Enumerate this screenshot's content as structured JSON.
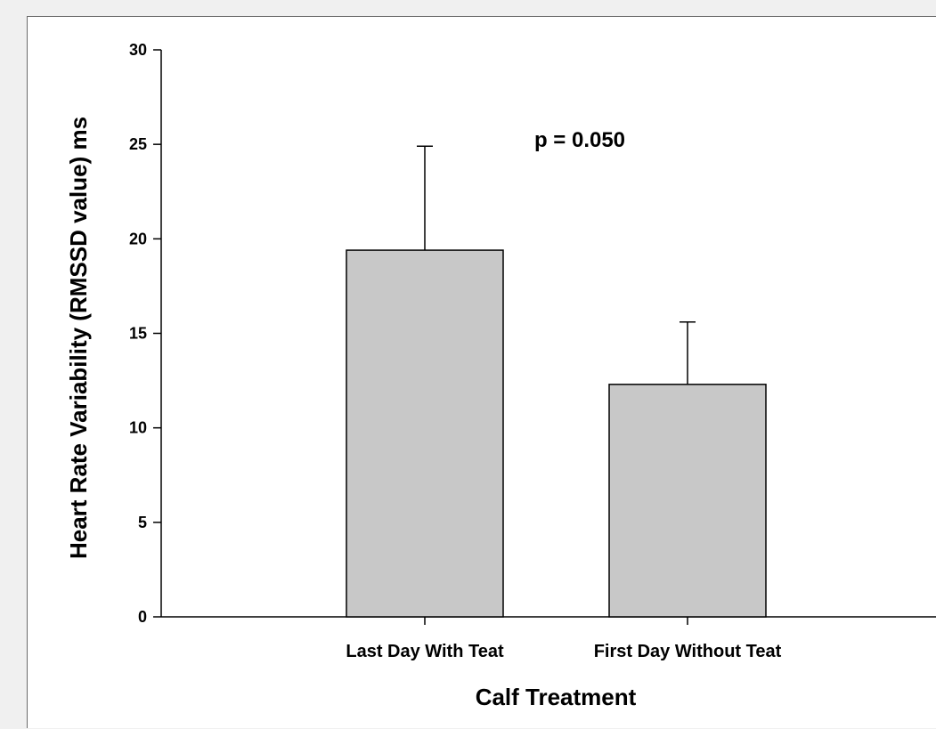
{
  "chart_data": {
    "type": "bar",
    "categories": [
      "Last Day With Teat",
      "First Day Without Teat"
    ],
    "values": [
      19.4,
      12.3
    ],
    "error_upper": [
      24.9,
      15.6
    ],
    "title": "",
    "xlabel": "Calf Treatment",
    "ylabel": "Heart Rate Variability (RMSSD value) ms",
    "ylim": [
      0,
      30
    ],
    "yticks": [
      "0",
      "5",
      "10",
      "15",
      "20",
      "25",
      "30"
    ],
    "annotation": "p = 0.050",
    "grid": false,
    "legend": "none",
    "bar_color": "#c8c8c8"
  }
}
